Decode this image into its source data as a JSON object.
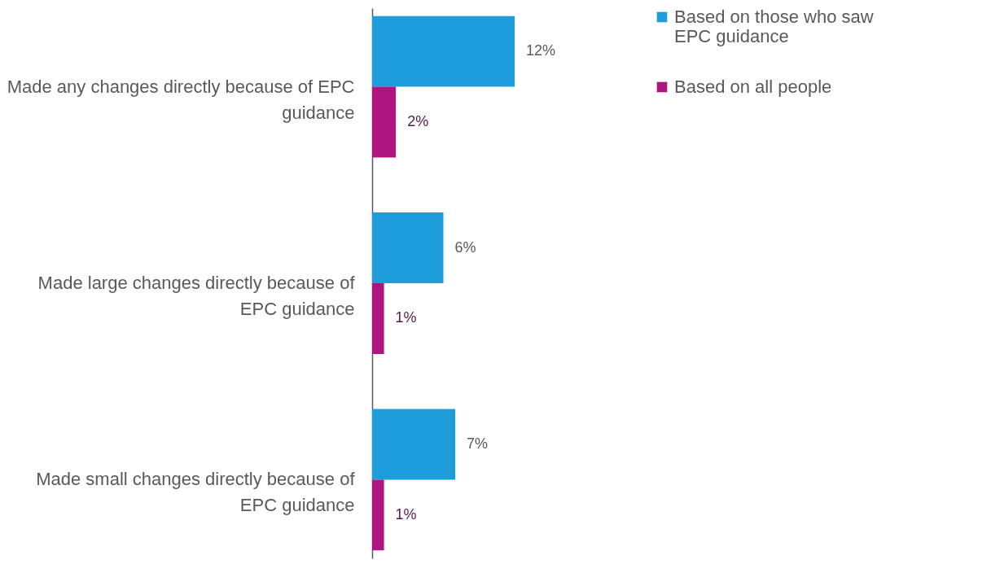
{
  "chart_data": {
    "type": "bar",
    "orientation": "horizontal",
    "categories": [
      "Made any changes directly because of EPC guidance",
      "Made large changes directly because of EPC guidance",
      "Made small changes directly because of EPC guidance"
    ],
    "series": [
      {
        "name": "Based on those who saw EPC guidance",
        "color": "#1e9ddb",
        "values": [
          12,
          6,
          7
        ],
        "value_labels": [
          "12%",
          "6%",
          "7%"
        ]
      },
      {
        "name": "Based on all people",
        "color": "#ae1480",
        "values": [
          2,
          1,
          1
        ],
        "value_labels": [
          "2%",
          "1%",
          "1%"
        ]
      }
    ],
    "legend": "right",
    "grid": false
  }
}
